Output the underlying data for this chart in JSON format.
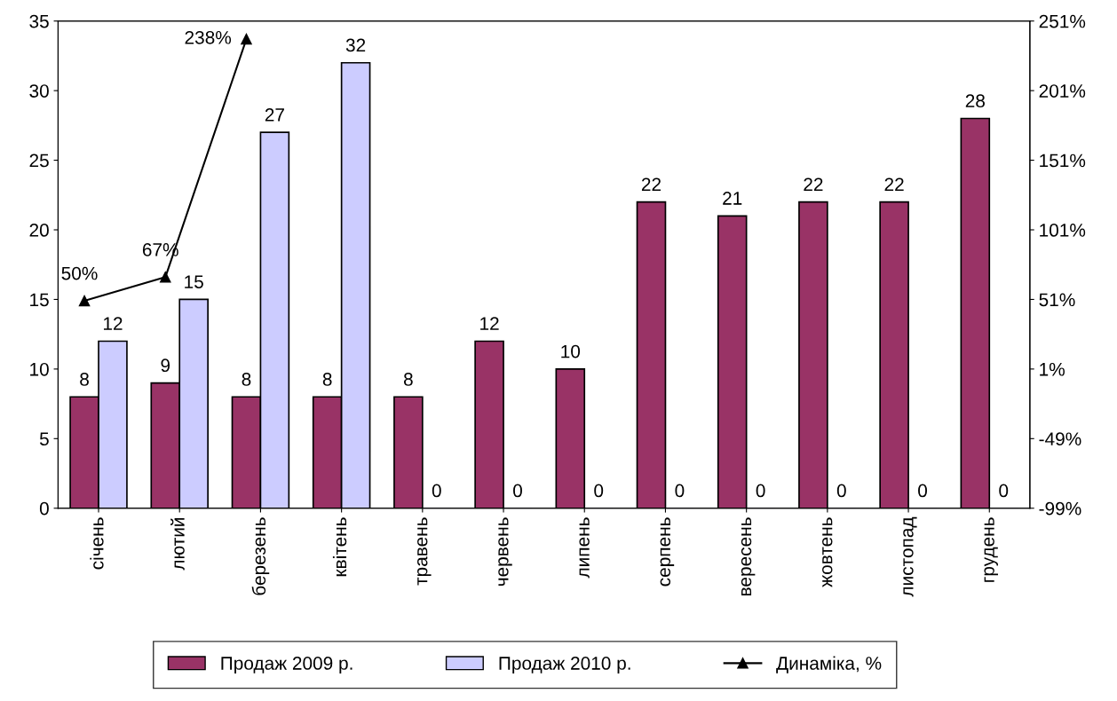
{
  "chart_data": {
    "type": "bar",
    "categories": [
      "січень",
      "лютий",
      "березень",
      "квітень",
      "травень",
      "червень",
      "липень",
      "серпень",
      "вересень",
      "жовтень",
      "листопад",
      "грудень"
    ],
    "series": [
      {
        "name": "Продаж 2009 р.",
        "color": "#993366",
        "values": [
          8,
          9,
          8,
          8,
          8,
          12,
          10,
          22,
          21,
          22,
          22,
          28
        ]
      },
      {
        "name": "Продаж 2010 р.",
        "color": "#ccccff",
        "values": [
          12,
          15,
          27,
          32,
          0,
          0,
          0,
          0,
          0,
          0,
          0,
          0
        ]
      },
      {
        "name": "Динаміка, %",
        "type": "line",
        "axis": "y2",
        "color": "#000000",
        "marker": "triangle",
        "values": [
          50,
          67,
          238,
          null,
          null,
          null,
          null,
          null,
          null,
          null,
          null,
          null
        ],
        "value_labels": [
          "50%",
          "67%",
          "238%",
          null,
          null,
          null,
          null,
          null,
          null,
          null,
          null,
          null
        ]
      }
    ],
    "ylim": [
      0,
      35
    ],
    "yticks": [
      0,
      5,
      10,
      15,
      20,
      25,
      30,
      35
    ],
    "y2lim": [
      -99,
      251
    ],
    "y2ticks": [
      {
        "value": -99,
        "label": "-99%"
      },
      {
        "value": -49,
        "label": "-49%"
      },
      {
        "value": 1,
        "label": "1%"
      },
      {
        "value": 51,
        "label": "51%"
      },
      {
        "value": 101,
        "label": "101%"
      },
      {
        "value": 151,
        "label": "151%"
      },
      {
        "value": 201,
        "label": "201%"
      },
      {
        "value": 251,
        "label": "251%"
      }
    ],
    "data_labels": true,
    "grid": false,
    "legend": "bottom"
  }
}
